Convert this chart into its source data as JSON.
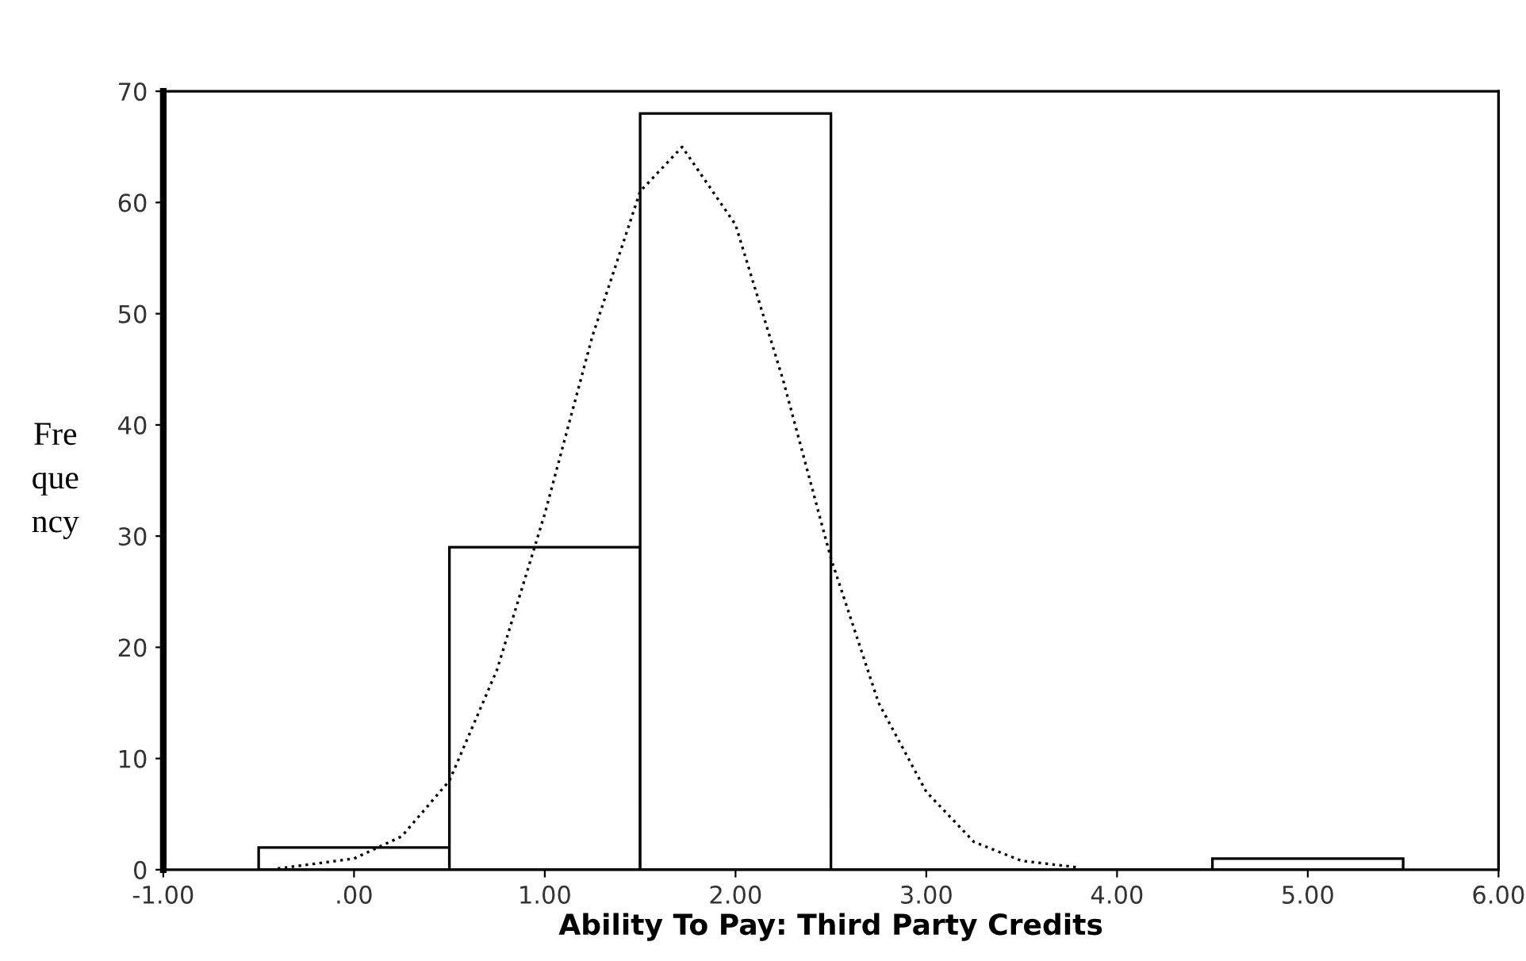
{
  "chart_data": {
    "type": "histogram",
    "xlabel": "Ability To Pay: Third Party Credits",
    "ylabel": "Fre\nque\nncy",
    "bins": [
      -0.5,
      0.5,
      1.5,
      2.5,
      3.5,
      4.5,
      5.5
    ],
    "values": [
      2,
      29,
      68,
      0,
      0,
      1
    ],
    "color": "#ffffff",
    "series": [
      {
        "type": "line",
        "color": "#000000",
        "line_style": "dotted",
        "x": [
          -0.4,
          0.0,
          0.25,
          0.5,
          0.75,
          1.0,
          1.25,
          1.5,
          1.72,
          2.0,
          2.25,
          2.5,
          2.75,
          3.0,
          3.25,
          3.5,
          3.8
        ],
        "values": [
          0.1,
          1,
          3,
          8,
          18,
          32,
          48,
          61,
          65,
          58,
          44,
          28,
          15,
          7,
          2.5,
          0.8,
          0.2
        ]
      }
    ],
    "xlim": [
      -1,
      6
    ],
    "ylim": [
      0,
      70
    ],
    "xticks": [
      {
        "value": -1,
        "label": "-1.00"
      },
      {
        "value": 0,
        "label": ".00"
      },
      {
        "value": 1,
        "label": "1.00"
      },
      {
        "value": 2,
        "label": "2.00"
      },
      {
        "value": 3,
        "label": "3.00"
      },
      {
        "value": 4,
        "label": "4.00"
      },
      {
        "value": 5,
        "label": "5.00"
      },
      {
        "value": 6,
        "label": "6.00"
      }
    ],
    "yticks": [
      0,
      10,
      20,
      30,
      40,
      50,
      60,
      70
    ],
    "grid": false,
    "legend": false
  }
}
